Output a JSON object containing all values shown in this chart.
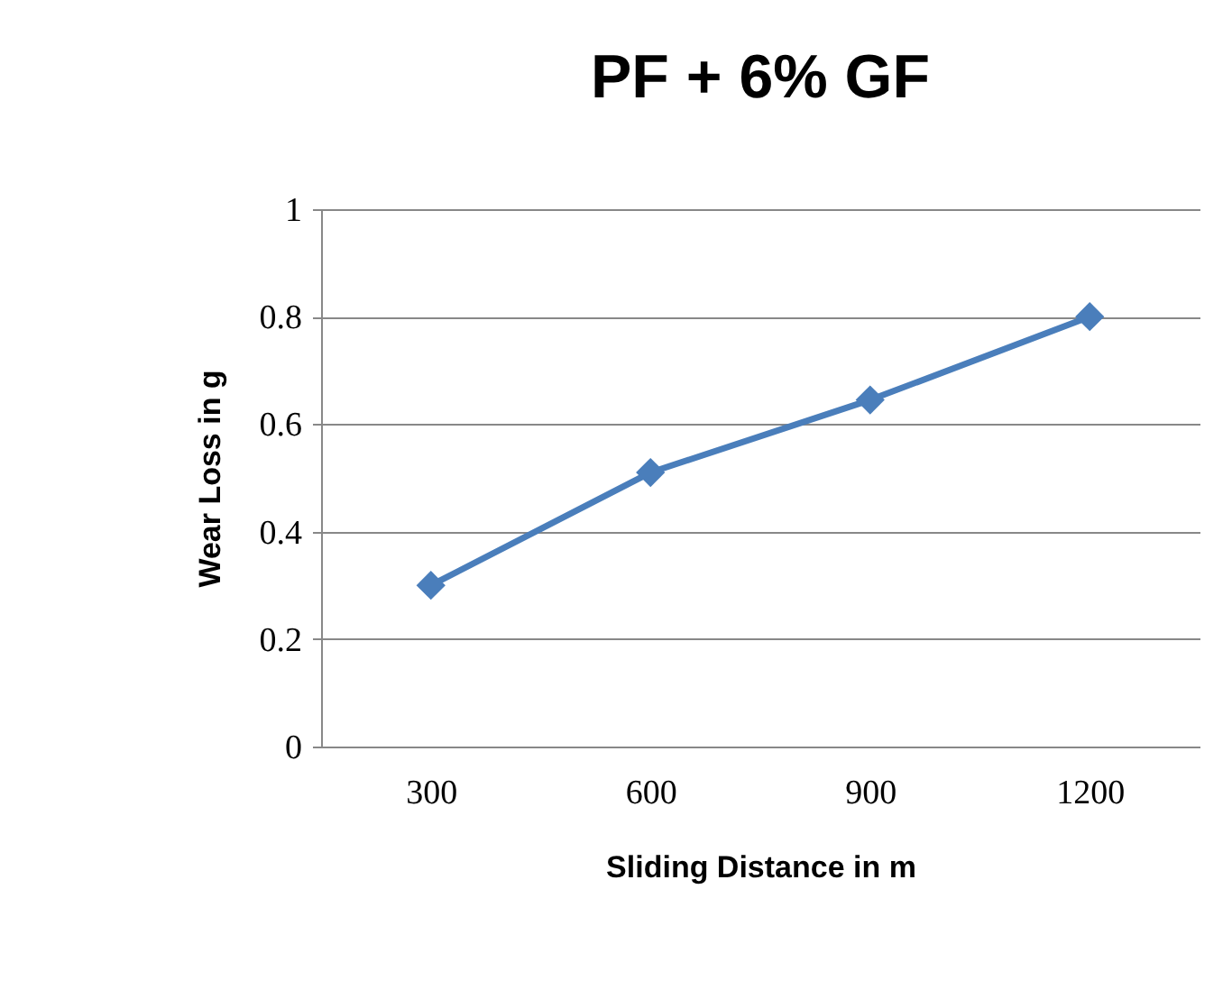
{
  "chart_data": {
    "type": "line",
    "title": "PF + 6% GF",
    "xlabel": "Sliding Distance in m",
    "ylabel": "Wear Loss in g",
    "categories": [
      "300",
      "600",
      "900",
      "1200"
    ],
    "series": [
      {
        "color": "#4a7ebb",
        "values": [
          0.3,
          0.51,
          0.645,
          0.8
        ]
      }
    ],
    "ylim": [
      0,
      1
    ],
    "yticks": [
      0,
      0.2,
      0.4,
      0.6,
      0.8,
      1
    ],
    "grid": "y",
    "marker": "diamond",
    "line_style": "solid",
    "legend": false
  }
}
